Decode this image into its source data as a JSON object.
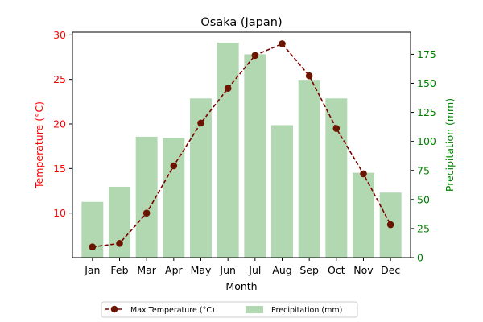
{
  "chart_data": {
    "type": "bar+line",
    "title": "Osaka (Japan)",
    "xlabel": "Month",
    "ylabel_left": "Temperature (°C)",
    "ylabel_right": "Precipitation (mm)",
    "categories": [
      "Jan",
      "Feb",
      "Mar",
      "Apr",
      "May",
      "Jun",
      "Jul",
      "Aug",
      "Sep",
      "Oct",
      "Nov",
      "Dec"
    ],
    "y_left_range": [
      5.0,
      30.3
    ],
    "y_left_ticks": [
      10,
      15,
      20,
      25,
      30
    ],
    "y_right_range": [
      0,
      194
    ],
    "y_right_ticks": [
      0,
      25,
      50,
      75,
      100,
      125,
      150,
      175
    ],
    "grid": false,
    "legend_position": "bottom-center",
    "series": [
      {
        "name": "Max Temperature (°C)",
        "kind": "line",
        "axis": "left",
        "color": "#7b0000",
        "marker_color": "#6b1500",
        "style": "dashed",
        "values": [
          6.2,
          6.6,
          10.0,
          15.3,
          20.1,
          24.0,
          27.7,
          29.0,
          25.4,
          19.5,
          14.4,
          8.7
        ]
      },
      {
        "name": "Precipitation (mm)",
        "kind": "bar",
        "axis": "right",
        "color": "#b2d8b2",
        "values": [
          48,
          61,
          104,
          103,
          137,
          185,
          175,
          114,
          153,
          137,
          73,
          56
        ]
      }
    ],
    "colors": {
      "left_axis": "#ff0000",
      "right_axis": "#008000",
      "text": "#000000"
    }
  }
}
